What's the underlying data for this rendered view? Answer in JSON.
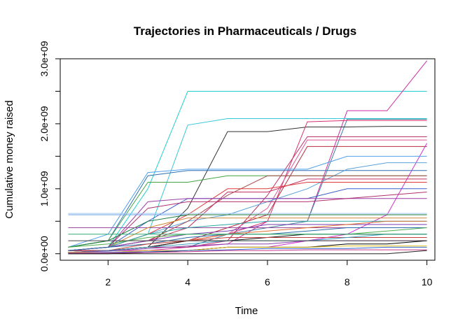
{
  "chart_data": {
    "type": "line",
    "title": "Trajectories in Pharmaceuticals / Drugs",
    "xlabel": "Time",
    "ylabel": "Cumulative money raised",
    "xlim": [
      0.8,
      10.2
    ],
    "ylim": [
      -0.1,
      3.0
    ],
    "x_ticks": [
      2,
      4,
      6,
      8,
      10
    ],
    "x_tick_labels": [
      "2",
      "4",
      "6",
      "8",
      "10"
    ],
    "y_ticks": [
      0,
      1,
      2,
      3
    ],
    "y_tick_labels": [
      "0.0e+00",
      "1.0e+09",
      "2.0e+09",
      "3.0e+09"
    ],
    "y_minor_ticks": [
      0.5,
      1.5,
      2.5
    ],
    "y_units": "1e9",
    "grid": false,
    "legend": "none",
    "x": [
      1,
      2,
      3,
      4,
      5,
      6,
      7,
      8,
      9,
      10
    ],
    "series": [
      {
        "color": "#22cfcf",
        "values": [
          0.05,
          0.1,
          1.0,
          2.5,
          2.5,
          2.5,
          2.5,
          2.5,
          2.5,
          2.5
        ]
      },
      {
        "color": "#cc2ea6",
        "values": [
          0.05,
          0.05,
          0.05,
          0.1,
          0.15,
          0.5,
          0.5,
          2.2,
          2.2,
          2.97
        ]
      },
      {
        "color": "#3f7f9f",
        "values": [
          0.05,
          0.05,
          0.1,
          0.1,
          0.3,
          0.4,
          0.5,
          2.07,
          2.07,
          2.07
        ]
      },
      {
        "color": "#36c8d8",
        "values": [
          0.05,
          0.1,
          0.3,
          1.98,
          2.08,
          2.08,
          2.08,
          2.08,
          2.08,
          2.08
        ]
      },
      {
        "color": "#333333",
        "values": [
          0.05,
          0.05,
          0.1,
          0.7,
          1.88,
          1.88,
          1.95,
          1.95,
          1.96,
          1.96
        ]
      },
      {
        "color": "#d6336c",
        "values": [
          0.05,
          0.05,
          0.1,
          0.2,
          0.3,
          0.5,
          2.03,
          2.05,
          2.05,
          2.05
        ]
      },
      {
        "color": "#c0306a",
        "values": [
          0.05,
          0.05,
          0.1,
          0.1,
          0.2,
          0.9,
          1.8,
          1.8,
          1.8,
          1.8
        ]
      },
      {
        "color": "#e05597",
        "values": [
          0.02,
          0.05,
          0.1,
          0.2,
          0.3,
          0.7,
          1.75,
          1.75,
          1.75,
          1.75
        ]
      },
      {
        "color": "#b52e3c",
        "values": [
          0.05,
          0.05,
          0.1,
          0.2,
          0.4,
          0.6,
          1.65,
          1.65,
          1.65,
          1.65
        ]
      },
      {
        "color": "#cc33cc",
        "values": [
          0.02,
          0.02,
          0.05,
          0.05,
          0.1,
          0.1,
          0.2,
          0.3,
          0.6,
          1.7
        ]
      },
      {
        "color": "#4ea0ec",
        "values": [
          0.1,
          0.3,
          1.25,
          1.3,
          1.3,
          1.3,
          1.3,
          1.5,
          1.5,
          1.5
        ]
      },
      {
        "color": "#2f6fb0",
        "values": [
          0.1,
          0.2,
          1.2,
          1.28,
          1.28,
          1.28,
          1.28,
          1.28,
          1.28,
          1.28
        ]
      },
      {
        "color": "#5aa0d8",
        "values": [
          0.05,
          0.1,
          0.3,
          0.5,
          0.6,
          0.8,
          1.0,
          1.3,
          1.4,
          1.4
        ]
      },
      {
        "color": "#44a344",
        "values": [
          0.1,
          0.2,
          1.1,
          1.1,
          1.2,
          1.2,
          1.2,
          1.2,
          1.2,
          1.2
        ]
      },
      {
        "color": "#a84a4a",
        "values": [
          0.05,
          0.1,
          0.2,
          0.5,
          0.9,
          1.2,
          1.2,
          1.2,
          1.2,
          1.2
        ]
      },
      {
        "color": "#c43060",
        "values": [
          0.05,
          0.1,
          0.2,
          0.4,
          0.95,
          0.95,
          1.15,
          1.15,
          1.15,
          1.15
        ]
      },
      {
        "color": "#e03a3a",
        "values": [
          0.05,
          0.1,
          0.3,
          0.6,
          1.0,
          1.0,
          1.1,
          1.1,
          1.1,
          1.1
        ]
      },
      {
        "color": "#3a5fcd",
        "values": [
          0.05,
          0.1,
          0.5,
          0.85,
          0.85,
          0.85,
          0.85,
          1.0,
          1.0,
          1.0
        ]
      },
      {
        "color": "#9b3fa5",
        "values": [
          0.05,
          0.1,
          0.8,
          0.85,
          0.85,
          0.85,
          0.85,
          0.85,
          0.85,
          0.85
        ]
      },
      {
        "color": "#b0306e",
        "values": [
          0.05,
          0.1,
          0.7,
          0.8,
          0.8,
          0.8,
          0.8,
          0.85,
          0.9,
          0.95
        ]
      },
      {
        "color": "#6aa3e8",
        "values": [
          0.6,
          0.6,
          0.6,
          0.6,
          0.6,
          0.6,
          0.6,
          0.6,
          0.6,
          0.6
        ]
      },
      {
        "color": "#9ec4ee",
        "values": [
          0.62,
          0.62,
          0.62,
          0.62,
          0.62,
          0.62,
          0.62,
          0.62,
          0.62,
          0.62
        ]
      },
      {
        "color": "#1a7a3a",
        "values": [
          0.1,
          0.2,
          0.5,
          0.6,
          0.6,
          0.6,
          0.6,
          0.6,
          0.6,
          0.6
        ]
      },
      {
        "color": "#9a4a9a",
        "values": [
          0.4,
          0.4,
          0.4,
          0.4,
          0.4,
          0.4,
          0.4,
          0.4,
          0.4,
          0.4
        ]
      },
      {
        "color": "#d08a3a",
        "values": [
          0.05,
          0.1,
          0.4,
          0.55,
          0.55,
          0.55,
          0.55,
          0.55,
          0.55,
          0.55
        ]
      },
      {
        "color": "#2aa8a8",
        "values": [
          0.05,
          0.1,
          0.3,
          0.4,
          0.45,
          0.5,
          0.5,
          0.5,
          0.5,
          0.5
        ]
      },
      {
        "color": "#7a3fb0",
        "values": [
          0.05,
          0.1,
          0.2,
          0.3,
          0.35,
          0.45,
          0.45,
          0.45,
          0.45,
          0.45
        ]
      },
      {
        "color": "#e07030",
        "values": [
          0.02,
          0.05,
          0.1,
          0.2,
          0.3,
          0.35,
          0.4,
          0.45,
          0.5,
          0.5
        ]
      },
      {
        "color": "#2a6aa8",
        "values": [
          0.05,
          0.1,
          0.15,
          0.25,
          0.3,
          0.3,
          0.35,
          0.4,
          0.4,
          0.4
        ]
      },
      {
        "color": "#111111",
        "values": [
          0.02,
          0.05,
          0.1,
          0.2,
          0.2,
          0.25,
          0.3,
          0.3,
          0.3,
          0.3
        ]
      },
      {
        "color": "#50b050",
        "values": [
          0.1,
          0.15,
          0.25,
          0.3,
          0.3,
          0.3,
          0.3,
          0.3,
          0.35,
          0.4
        ]
      },
      {
        "color": "#c04040",
        "values": [
          0.02,
          0.05,
          0.15,
          0.2,
          0.25,
          0.25,
          0.25,
          0.25,
          0.25,
          0.25
        ]
      },
      {
        "color": "#3aa0c0",
        "values": [
          0.02,
          0.05,
          0.1,
          0.15,
          0.2,
          0.2,
          0.2,
          0.25,
          0.3,
          0.3
        ]
      },
      {
        "color": "#8844aa",
        "values": [
          0.02,
          0.04,
          0.08,
          0.12,
          0.15,
          0.15,
          0.2,
          0.2,
          0.2,
          0.2
        ]
      },
      {
        "color": "#000000",
        "values": [
          0.0,
          0.0,
          0.02,
          0.05,
          0.1,
          0.1,
          0.1,
          0.15,
          0.15,
          0.2
        ]
      },
      {
        "color": "#e0c020",
        "values": [
          0.02,
          0.02,
          0.05,
          0.05,
          0.1,
          0.1,
          0.1,
          0.12,
          0.12,
          0.12
        ]
      },
      {
        "color": "#3366cc",
        "values": [
          0.01,
          0.02,
          0.03,
          0.05,
          0.06,
          0.08,
          0.08,
          0.08,
          0.1,
          0.1
        ]
      },
      {
        "color": "#c83a8a",
        "values": [
          0.01,
          0.01,
          0.02,
          0.03,
          0.05,
          0.05,
          0.06,
          0.06,
          0.06,
          0.06
        ]
      },
      {
        "color": "#222222",
        "values": [
          0.0,
          0.0,
          0.0,
          0.0,
          0.0,
          0.0,
          0.0,
          0.0,
          0.0,
          0.05
        ]
      },
      {
        "color": "#33aa77",
        "values": [
          0.3,
          0.3,
          0.3,
          0.3,
          0.3,
          0.3,
          0.3,
          0.3,
          0.3,
          0.3
        ]
      },
      {
        "color": "#444444",
        "values": [
          0.2,
          0.2,
          0.2,
          0.2,
          0.2,
          0.2,
          0.2,
          0.2,
          0.2,
          0.2
        ]
      }
    ]
  }
}
